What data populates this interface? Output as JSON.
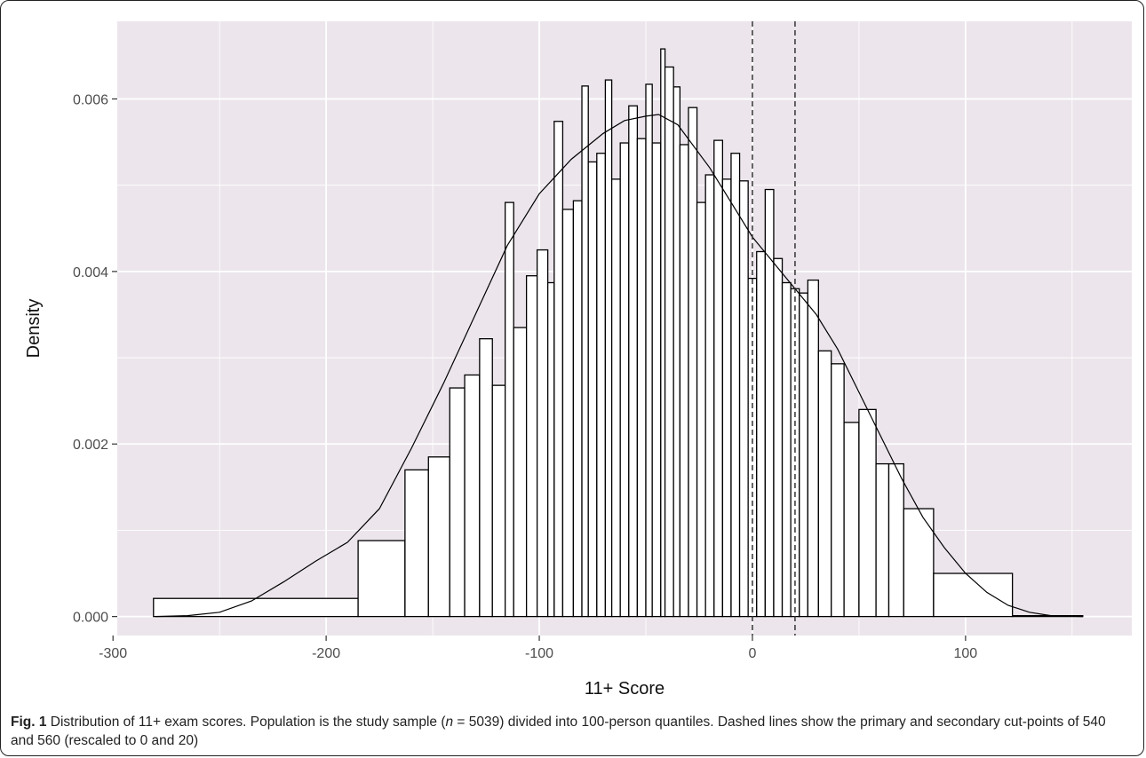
{
  "caption": {
    "label": "Fig. 1",
    "text_1": " Distribution of 11+ exam scores. Population is the study sample (",
    "n_italic": "n",
    "text_2": " = 5039) divided into 100-person quantiles. Dashed lines show the primary and secondary cut-points of 540 and 560 (rescaled to 0 and 20)"
  },
  "colors": {
    "panel_background": "#ece6ec",
    "gridline": "#ffffff",
    "bar_fill": "#ffffff",
    "bar_stroke": "#000000",
    "density_line": "#000000",
    "cut_line": "#333333"
  },
  "chart_data": {
    "type": "histogram",
    "xlabel": "11+ Score",
    "ylabel": "Density",
    "xlim": [
      -298,
      178
    ],
    "ylim": [
      -0.00022,
      0.0069
    ],
    "x_ticks": [
      -300,
      -200,
      -100,
      0,
      100
    ],
    "x_tick_labels": [
      "-300",
      "-200",
      "-100",
      "0",
      "100"
    ],
    "y_ticks": [
      0,
      0.002,
      0.004,
      0.006
    ],
    "y_tick_labels": [
      "0.000",
      "0.002",
      "0.004",
      "0.006"
    ],
    "grid": true,
    "reference_lines": [
      {
        "x": 0,
        "style": "dashed"
      },
      {
        "x": 20,
        "style": "dashed"
      }
    ],
    "bars": [
      {
        "x0": -281,
        "x1": -185,
        "density": 0.00021
      },
      {
        "x0": -185,
        "x1": -163,
        "density": 0.00088
      },
      {
        "x0": -163,
        "x1": -152,
        "density": 0.0017
      },
      {
        "x0": -152,
        "x1": -142,
        "density": 0.00185
      },
      {
        "x0": -142,
        "x1": -135,
        "density": 0.00265
      },
      {
        "x0": -135,
        "x1": -128,
        "density": 0.0028
      },
      {
        "x0": -128,
        "x1": -122,
        "density": 0.00322
      },
      {
        "x0": -122,
        "x1": -116,
        "density": 0.00268
      },
      {
        "x0": -116,
        "x1": -112,
        "density": 0.0048
      },
      {
        "x0": -112,
        "x1": -106,
        "density": 0.00335
      },
      {
        "x0": -106,
        "x1": -101,
        "density": 0.00395
      },
      {
        "x0": -101,
        "x1": -96,
        "density": 0.00425
      },
      {
        "x0": -96,
        "x1": -93,
        "density": 0.00387
      },
      {
        "x0": -93,
        "x1": -89,
        "density": 0.00574
      },
      {
        "x0": -89,
        "x1": -84,
        "density": 0.00472
      },
      {
        "x0": -84,
        "x1": -80,
        "density": 0.00482
      },
      {
        "x0": -80,
        "x1": -77,
        "density": 0.00615
      },
      {
        "x0": -77,
        "x1": -73,
        "density": 0.00527
      },
      {
        "x0": -73,
        "x1": -69,
        "density": 0.00537
      },
      {
        "x0": -69,
        "x1": -66,
        "density": 0.00622
      },
      {
        "x0": -66,
        "x1": -62,
        "density": 0.00507
      },
      {
        "x0": -62,
        "x1": -58,
        "density": 0.00549
      },
      {
        "x0": -58,
        "x1": -54,
        "density": 0.00592
      },
      {
        "x0": -54,
        "x1": -50,
        "density": 0.00554
      },
      {
        "x0": -50,
        "x1": -47,
        "density": 0.00617
      },
      {
        "x0": -47,
        "x1": -43,
        "density": 0.00549
      },
      {
        "x0": -43,
        "x1": -41,
        "density": 0.00658
      },
      {
        "x0": -41,
        "x1": -37,
        "density": 0.00637
      },
      {
        "x0": -37,
        "x1": -34,
        "density": 0.00614
      },
      {
        "x0": -34,
        "x1": -30,
        "density": 0.00547
      },
      {
        "x0": -30,
        "x1": -26,
        "density": 0.0059
      },
      {
        "x0": -26,
        "x1": -22,
        "density": 0.0048
      },
      {
        "x0": -22,
        "x1": -18,
        "density": 0.00512
      },
      {
        "x0": -18,
        "x1": -14,
        "density": 0.00552
      },
      {
        "x0": -14,
        "x1": -10,
        "density": 0.00507
      },
      {
        "x0": -10,
        "x1": -6,
        "density": 0.00537
      },
      {
        "x0": -6,
        "x1": -2,
        "density": 0.00505
      },
      {
        "x0": -2,
        "x1": 2,
        "density": 0.00392
      },
      {
        "x0": 2,
        "x1": 6,
        "density": 0.00423
      },
      {
        "x0": 6,
        "x1": 10,
        "density": 0.00495
      },
      {
        "x0": 10,
        "x1": 14,
        "density": 0.00415
      },
      {
        "x0": 14,
        "x1": 18,
        "density": 0.00387
      },
      {
        "x0": 18,
        "x1": 22,
        "density": 0.0038
      },
      {
        "x0": 22,
        "x1": 26,
        "density": 0.00375
      },
      {
        "x0": 26,
        "x1": 31,
        "density": 0.0039
      },
      {
        "x0": 31,
        "x1": 37,
        "density": 0.00308
      },
      {
        "x0": 37,
        "x1": 43,
        "density": 0.00293
      },
      {
        "x0": 43,
        "x1": 50,
        "density": 0.00225
      },
      {
        "x0": 50,
        "x1": 58,
        "density": 0.0024
      },
      {
        "x0": 58,
        "x1": 64,
        "density": 0.00177
      },
      {
        "x0": 64,
        "x1": 71,
        "density": 0.00177
      },
      {
        "x0": 71,
        "x1": 85,
        "density": 0.00125
      },
      {
        "x0": 85,
        "x1": 122,
        "density": 0.0005
      },
      {
        "x0": 122,
        "x1": 155,
        "density": 1e-05
      }
    ],
    "density_curve": {
      "x": [
        -280,
        -265,
        -250,
        -235,
        -220,
        -205,
        -190,
        -175,
        -160,
        -145,
        -130,
        -115,
        -100,
        -85,
        -70,
        -60,
        -50,
        -44,
        -35,
        -20,
        -10,
        0,
        10,
        20,
        30,
        40,
        50,
        60,
        70,
        80,
        90,
        100,
        110,
        120,
        130,
        140,
        155
      ],
      "y": [
        0.0,
        1e-05,
        5e-05,
        0.00018,
        0.0004,
        0.00064,
        0.00086,
        0.00125,
        0.00195,
        0.0027,
        0.0035,
        0.0043,
        0.0049,
        0.0053,
        0.0056,
        0.00575,
        0.0058,
        0.00582,
        0.0057,
        0.0052,
        0.0048,
        0.0044,
        0.0041,
        0.0038,
        0.0035,
        0.0031,
        0.0026,
        0.0021,
        0.0016,
        0.00115,
        0.0008,
        0.0005,
        0.00028,
        0.00013,
        5e-05,
        1e-05,
        0.0
      ]
    }
  }
}
